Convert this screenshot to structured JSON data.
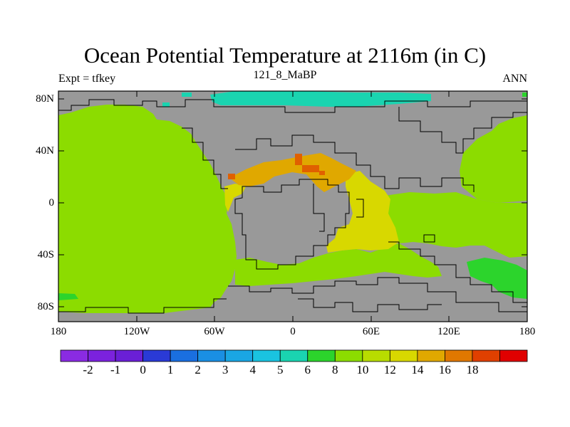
{
  "title": "Ocean Potential Temperature at 2116m (in C)",
  "subtitle_left": "Expt = tfkey",
  "subtitle_center": "121_8_MaBP",
  "subtitle_right": "ANN",
  "lat_ticks": [
    "80N",
    "40N",
    "0",
    "40S",
    "80S"
  ],
  "lon_ticks": [
    "180",
    "120W",
    "60W",
    "0",
    "60E",
    "120E",
    "180"
  ],
  "colorbar": {
    "colors": [
      "#8a2be2",
      "#7b22dd",
      "#6a1fd6",
      "#2a3ad6",
      "#1a6fe0",
      "#1a8fe3",
      "#1aa6e3",
      "#1ac3e0",
      "#1ad4b0",
      "#2cd42c",
      "#8cdc00",
      "#b8dc00",
      "#d8d800",
      "#e0a800",
      "#e07800",
      "#e04000",
      "#e00000"
    ],
    "labels": [
      "-2",
      "-1",
      "0",
      "1",
      "2",
      "3",
      "4",
      "5",
      "6",
      "8",
      "10",
      "12",
      "14",
      "16",
      "18"
    ]
  },
  "colors": {
    "land": "#999999",
    "ocean_10": "#8cdc00",
    "ocean_8": "#2cd42c",
    "ocean_6": "#1ad4b0",
    "ocean_12": "#d8d800",
    "ocean_14": "#e0a800",
    "ocean_16": "#e06000"
  }
}
